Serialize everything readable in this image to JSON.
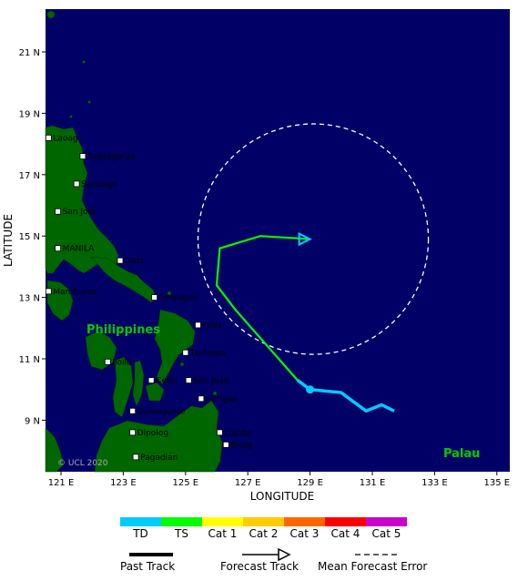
{
  "axes": {
    "x_label": "LONGITUDE",
    "y_label": "LATITUDE",
    "x_ticks": [
      "121 E",
      "123 E",
      "125 E",
      "127 E",
      "129 E",
      "131 E",
      "133 E",
      "135 E"
    ],
    "y_ticks": [
      "21 N",
      "19 N",
      "17 N",
      "15 N",
      "13 N",
      "11 N",
      "9 N"
    ]
  },
  "map": {
    "country_label": "Philippines",
    "country2_label": "Palau",
    "copyright": "© UCL 2020",
    "cities": [
      {
        "name": "Laoag",
        "lon": 120.6,
        "lat": 18.2
      },
      {
        "name": "Tuguegarao",
        "lon": 121.7,
        "lat": 17.6
      },
      {
        "name": "Santiago",
        "lon": 121.5,
        "lat": 16.7
      },
      {
        "name": "San Jose",
        "lon": 120.9,
        "lat": 15.8
      },
      {
        "name": "MANILA",
        "lon": 120.9,
        "lat": 14.6
      },
      {
        "name": "Daet",
        "lon": 122.9,
        "lat": 14.2
      },
      {
        "name": "Mamburao",
        "lon": 120.6,
        "lat": 13.2
      },
      {
        "name": "Sorsogon",
        "lon": 124.0,
        "lat": 13.0
      },
      {
        "name": "Oras",
        "lon": 125.4,
        "lat": 12.1
      },
      {
        "name": "Tacloban",
        "lon": 125.0,
        "lat": 11.2
      },
      {
        "name": "Iloilo",
        "lon": 122.5,
        "lat": 10.9
      },
      {
        "name": "Cebu",
        "lon": 123.9,
        "lat": 10.3
      },
      {
        "name": "San Juan",
        "lon": 125.1,
        "lat": 10.3
      },
      {
        "name": "Surigao",
        "lon": 125.5,
        "lat": 9.7
      },
      {
        "name": "Dumaguete",
        "lon": 123.3,
        "lat": 9.3
      },
      {
        "name": "Dipolog",
        "lon": 123.3,
        "lat": 8.6
      },
      {
        "name": "Lianga",
        "lon": 126.1,
        "lat": 8.6
      },
      {
        "name": "Pagadian",
        "lon": 123.4,
        "lat": 7.8
      },
      {
        "name": "Bislig",
        "lon": 126.3,
        "lat": 8.2
      }
    ]
  },
  "track": {
    "past": [
      [
        131.7,
        9.3
      ],
      [
        131.3,
        9.5
      ],
      [
        130.8,
        9.3
      ],
      [
        130.0,
        9.9
      ],
      [
        129.0,
        10.0
      ],
      [
        128.6,
        10.3
      ]
    ],
    "current_position": [
      129.0,
      10.0
    ],
    "forecast_ts": [
      [
        128.6,
        10.3
      ],
      [
        126.6,
        12.6
      ],
      [
        126.0,
        13.4
      ],
      [
        126.1,
        14.6
      ],
      [
        127.4,
        15.0
      ],
      [
        129.0,
        14.9
      ]
    ],
    "forecast_arrow_color": "#00ccff",
    "error_circle": {
      "center": [
        129.1,
        14.9
      ],
      "radius_deg": 3.7
    }
  },
  "legend": {
    "categories": [
      {
        "label": "TD",
        "color": "#00ccff"
      },
      {
        "label": "TS",
        "color": "#00ff00"
      },
      {
        "label": "Cat 1",
        "color": "#ffff00"
      },
      {
        "label": "Cat 2",
        "color": "#ffcc00"
      },
      {
        "label": "Cat 3",
        "color": "#ff6600"
      },
      {
        "label": "Cat 4",
        "color": "#ff0000"
      },
      {
        "label": "Cat 5",
        "color": "#cc00cc"
      }
    ],
    "past_track": "Past Track",
    "forecast_track": "Forecast Track",
    "mean_forecast_error": "Mean Forecast Error"
  },
  "colors": {
    "ocean": "#000066",
    "land": "#006600",
    "country_label": "#00cc00"
  }
}
